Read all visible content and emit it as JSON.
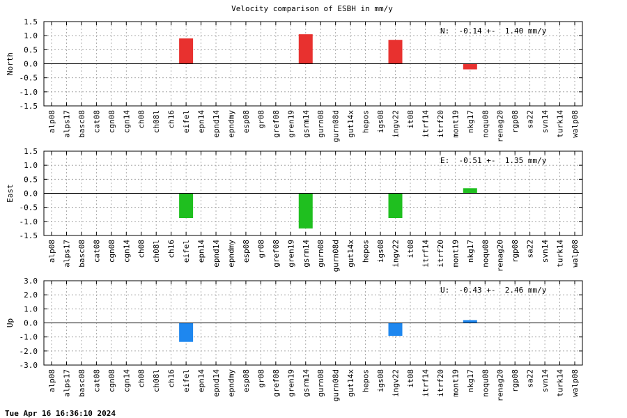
{
  "footer": {
    "timestamp": "Tue Apr 16 16:36:10 2024"
  },
  "chart_data": {
    "type": "bar",
    "title": "Velocity comparison of ESBH in mm/y",
    "categories": [
      "alp08",
      "alps17",
      "basc08",
      "cat08",
      "cgn08",
      "cgn14",
      "ch08",
      "ch08l",
      "ch16",
      "eifel",
      "epn14",
      "epnd14",
      "epndmy",
      "esp08",
      "gr08",
      "gref08",
      "gren19",
      "gsrm14",
      "gurn08",
      "gurn08d",
      "gut14x",
      "hepos",
      "igs08",
      "ingv22",
      "it08",
      "itrf14",
      "itrf20",
      "mont19",
      "nkg17",
      "noqu08",
      "renag20",
      "rgp08",
      "sa22",
      "svn14",
      "turk14",
      "walp08"
    ],
    "panels": [
      {
        "ylabel": "North",
        "ylim": [
          -1.5,
          1.5
        ],
        "yticks": [
          "-1.5",
          "-1.0",
          "-0.5",
          "0.0",
          "0.5",
          "1.0",
          "1.5"
        ],
        "color": "#e8312f",
        "stat": "N:  -0.14 +-  1.40 mm/y",
        "values": [
          null,
          null,
          null,
          null,
          null,
          null,
          null,
          null,
          null,
          0.9,
          null,
          null,
          null,
          null,
          null,
          null,
          null,
          1.05,
          null,
          null,
          null,
          null,
          null,
          0.85,
          null,
          null,
          null,
          null,
          -0.2,
          null,
          null,
          null,
          null,
          null,
          null,
          null
        ]
      },
      {
        "ylabel": "East",
        "ylim": [
          -1.5,
          1.5
        ],
        "yticks": [
          "-1.5",
          "-1.0",
          "-0.5",
          "0.0",
          "0.5",
          "1.0",
          "1.5"
        ],
        "color": "#1fbf1f",
        "stat": "E:  -0.51 +-  1.35 mm/y",
        "values": [
          null,
          null,
          null,
          null,
          null,
          null,
          null,
          null,
          null,
          -0.88,
          null,
          null,
          null,
          null,
          null,
          null,
          null,
          -1.25,
          null,
          null,
          null,
          null,
          null,
          -0.88,
          null,
          null,
          null,
          null,
          0.18,
          null,
          null,
          null,
          null,
          null,
          null,
          null
        ]
      },
      {
        "ylabel": "Up",
        "ylim": [
          -3.0,
          3.0
        ],
        "yticks": [
          "-3.0",
          "-2.0",
          "-1.0",
          "0.0",
          "1.0",
          "2.0",
          "3.0"
        ],
        "color": "#1e87ef",
        "stat": "U:  -0.43 +-  2.46 mm/y",
        "values": [
          null,
          null,
          null,
          null,
          null,
          null,
          null,
          null,
          null,
          -1.35,
          null,
          null,
          null,
          null,
          null,
          null,
          null,
          null,
          null,
          null,
          null,
          null,
          null,
          -0.92,
          null,
          null,
          null,
          null,
          0.2,
          null,
          null,
          null,
          null,
          null,
          null,
          null
        ]
      }
    ],
    "grid": true
  }
}
